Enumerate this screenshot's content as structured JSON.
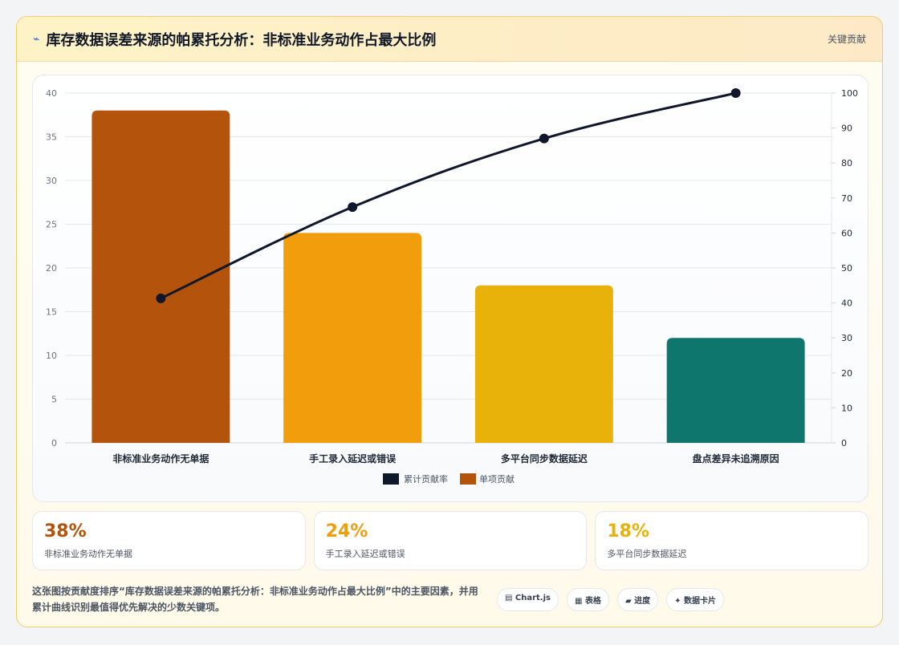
{
  "header": {
    "icon": "lightning-icon",
    "title": "库存数据误差来源的帕累托分析：非标准业务动作占最大比例",
    "tag": "关键贡献"
  },
  "chart_data": {
    "type": "bar",
    "categories": [
      "非标准业务动作无单据",
      "手工录入延迟或错误",
      "多平台同步数据延迟",
      "盘点差异未追溯原因"
    ],
    "series": [
      {
        "name": "单项贡献",
        "type": "bar",
        "axis": "left",
        "values": [
          38,
          24,
          18,
          12
        ],
        "colors": [
          "#b4530b",
          "#f29d0c",
          "#e8b20a",
          "#0f766e"
        ]
      },
      {
        "name": "累计贡献率",
        "type": "line",
        "axis": "right",
        "values": [
          41.3,
          67.4,
          87.0,
          100
        ],
        "color": "#0f172a"
      }
    ],
    "y_left": {
      "min": 0,
      "max": 40,
      "ticks": [
        0,
        5,
        10,
        15,
        20,
        25,
        30,
        35,
        40
      ]
    },
    "y_right": {
      "min": 0,
      "max": 100,
      "ticks": [
        0,
        10,
        20,
        30,
        40,
        50,
        60,
        70,
        80,
        90,
        100
      ]
    },
    "legend": {
      "placement": "bottom",
      "items": [
        "累计贡献率",
        "单项贡献"
      ]
    },
    "grid": true
  },
  "stats": [
    {
      "value": "38%",
      "label": "非标准业务动作无单据",
      "color": "#b4530b"
    },
    {
      "value": "24%",
      "label": "手工录入延迟或错误",
      "color": "#f29d0c"
    },
    {
      "value": "18%",
      "label": "多平台同步数据延迟",
      "color": "#e8b20a"
    }
  ],
  "footer": {
    "description": "这张图按贡献度排序“库存数据误差来源的帕累托分析：非标准业务动作占最大比例”中的主要因素，并用累计曲线识别最值得优先解决的少数关键项。",
    "chips": [
      {
        "icon": "▤",
        "label": "Chart.js"
      },
      {
        "icon": "▦",
        "label": "表格"
      },
      {
        "icon": "▰",
        "label": "进度"
      },
      {
        "icon": "✦",
        "label": "数据卡片"
      }
    ]
  }
}
